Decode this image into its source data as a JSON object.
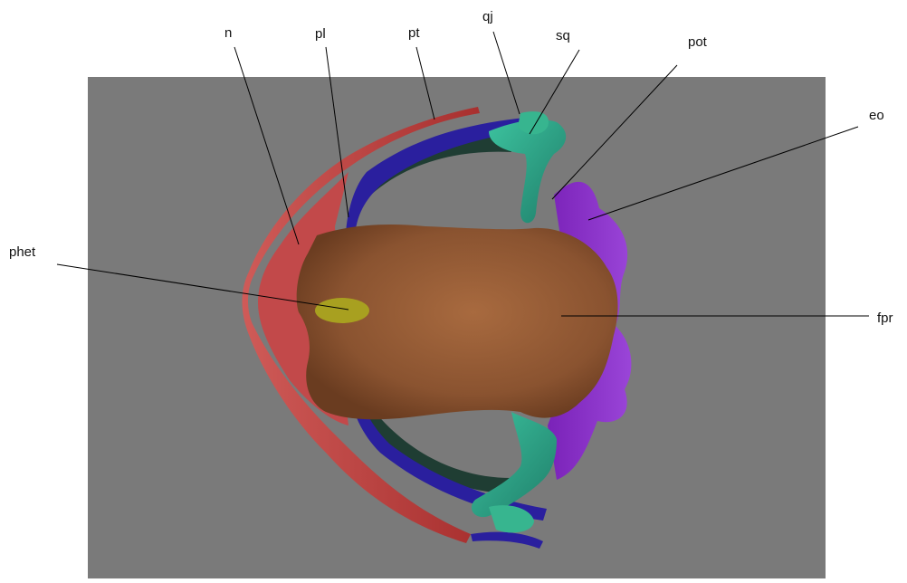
{
  "figure": {
    "background_color": "#7a7a7a",
    "subject": "skull-3d-render",
    "labels": {
      "n": "n",
      "pl": "pl",
      "pt": "pt",
      "qj": "qj",
      "sq": "sq",
      "pot": "pot",
      "eo": "eo",
      "phet": "phet",
      "fpr": "fpr"
    },
    "colors": {
      "nasal": "#b83a37",
      "frontoparietal": "#8e5530",
      "palatine_pterygoid": "#2a1f9e",
      "prootic_squamosal": "#2fa58a",
      "exoccipital": "#8a2fc9",
      "sphenethmoid": "#a8a020",
      "dark_green_bar": "#1f3d33"
    }
  }
}
